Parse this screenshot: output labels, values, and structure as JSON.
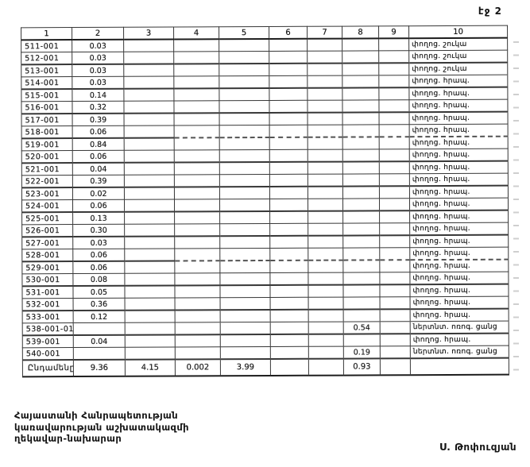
{
  "page": {
    "number_label": "էջ 2"
  },
  "table": {
    "headers": [
      "1",
      "2",
      "3",
      "4",
      "5",
      "6",
      "7",
      "8",
      "9",
      "10"
    ],
    "rows": [
      {
        "code": "511-001",
        "col2": "0.03",
        "col8": "",
        "col10": "փողոց. շուկա"
      },
      {
        "code": "512-001",
        "col2": "0.03",
        "col8": "",
        "col10": "փողոց. շուկա"
      },
      {
        "code": "513-001",
        "col2": "0.03",
        "col8": "",
        "col10": "փողոց. շուկա"
      },
      {
        "code": "514-001",
        "col2": "0.03",
        "col8": "",
        "col10": "փողոց. հրապ."
      },
      {
        "code": "515-001",
        "col2": "0.14",
        "col8": "",
        "col10": "փողոց. հրապ."
      },
      {
        "code": "516-001",
        "col2": "0.32",
        "col8": "",
        "col10": "փողոց. հրապ."
      },
      {
        "code": "517-001",
        "col2": "0.39",
        "col8": "",
        "col10": "փողոց. հրապ."
      },
      {
        "code": "518-001",
        "col2": "0.06",
        "col8": "",
        "col10": "փողոց. հրապ."
      },
      {
        "code": "519-001",
        "col2": "0.84",
        "col8": "",
        "col10": "փողոց. հրապ."
      },
      {
        "code": "520-001",
        "col2": "0.06",
        "col8": "",
        "col10": "փողոց. հրապ."
      },
      {
        "code": "521-001",
        "col2": "0.04",
        "col8": "",
        "col10": "փողոց. հրապ."
      },
      {
        "code": "522-001",
        "col2": "0.39",
        "col8": "",
        "col10": "փողոց. հրապ."
      },
      {
        "code": "523-001",
        "col2": "0.02",
        "col8": "",
        "col10": "փողոց. հրապ."
      },
      {
        "code": "524-001",
        "col2": "0.06",
        "col8": "",
        "col10": "փողոց. հրապ."
      },
      {
        "code": "525-001",
        "col2": "0.13",
        "col8": "",
        "col10": "փողոց. հրապ."
      },
      {
        "code": "526-001",
        "col2": "0.30",
        "col8": "",
        "col10": "փողոց. հրապ."
      },
      {
        "code": "527-001",
        "col2": "0.03",
        "col8": "",
        "col10": "փողոց. հրապ."
      },
      {
        "code": "528-001",
        "col2": "0.06",
        "col8": "",
        "col10": "փողոց. հրապ."
      },
      {
        "code": "529-001",
        "col2": "0.06",
        "col8": "",
        "col10": "փողոց. հրապ."
      },
      {
        "code": "530-001",
        "col2": "0.08",
        "col8": "",
        "col10": "փողոց. հրապ."
      },
      {
        "code": "531-001",
        "col2": "0.05",
        "col8": "",
        "col10": "փողոց. հրապ."
      },
      {
        "code": "532-001",
        "col2": "0.36",
        "col8": "",
        "col10": "փողոց. հրապ."
      },
      {
        "code": "533-001",
        "col2": "0.12",
        "col8": "",
        "col10": "փողոց. հրապ."
      },
      {
        "code": "538-001-01",
        "col2": "",
        "col8": "0.54",
        "col10": "ներտնտ. ոռոգ. ցանց"
      },
      {
        "code": "539-001",
        "col2": "0.04",
        "col8": "",
        "col10": "փողոց. հրապ."
      },
      {
        "code": "540-001",
        "col2": "",
        "col8": "0.19",
        "col10": "ներտնտ. ոռոգ. ցանց"
      }
    ],
    "total": {
      "label": "Ընդամենը",
      "col2": "9.36",
      "col3": "4.15",
      "col4": "0.002",
      "col5": "3.99",
      "col8": "0.93"
    }
  },
  "footer": {
    "org_lines": [
      "Հայաստանի Հանրապետության",
      "կառավարության աշխատակազմի",
      "ղեկավար-նախարար"
    ],
    "signature": "Ս. Թոփուզյան"
  }
}
